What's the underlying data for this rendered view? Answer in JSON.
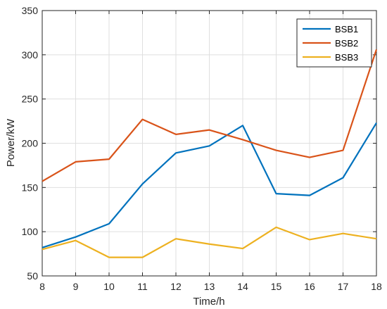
{
  "chart_data": {
    "type": "line",
    "title": "",
    "xlabel": "Time/h",
    "ylabel": "Power/kW",
    "xlim": [
      8,
      18
    ],
    "ylim": [
      50,
      350
    ],
    "x_ticks": [
      8,
      9,
      10,
      11,
      12,
      13,
      14,
      15,
      16,
      17,
      18
    ],
    "y_ticks": [
      50,
      100,
      150,
      200,
      250,
      300,
      350
    ],
    "grid": true,
    "legend_position": "top-right",
    "x": [
      8,
      9,
      10,
      11,
      12,
      13,
      14,
      15,
      16,
      17,
      18
    ],
    "series": [
      {
        "name": "BSB1",
        "color": "#0072BD",
        "values": [
          82,
          94,
          109,
          154,
          189,
          197,
          220,
          143,
          141,
          161,
          223
        ]
      },
      {
        "name": "BSB2",
        "color": "#D95319",
        "values": [
          157,
          179,
          182,
          227,
          210,
          215,
          204,
          192,
          184,
          192,
          306
        ]
      },
      {
        "name": "BSB3",
        "color": "#EDB120",
        "values": [
          80,
          90,
          71,
          71,
          92,
          86,
          81,
          105,
          91,
          98,
          92
        ]
      }
    ]
  }
}
